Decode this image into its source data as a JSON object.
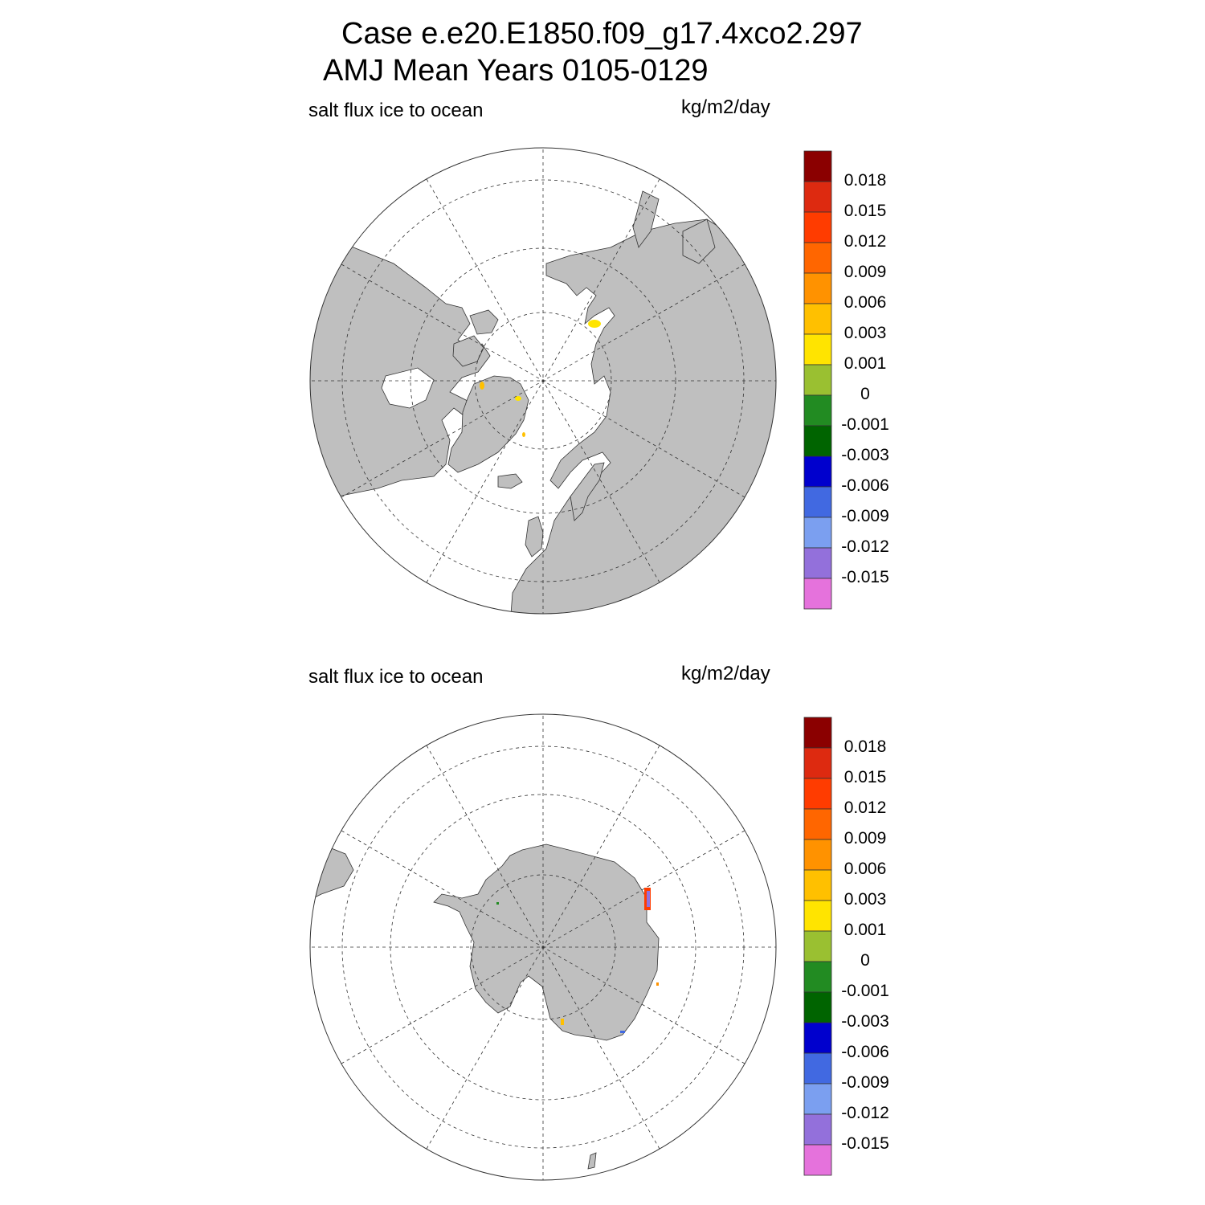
{
  "title_line1": "Case e.e20.E1850.f09_g17.4xco2.297",
  "title_line2": "AMJ Mean   Years 0105-0129",
  "panels": [
    {
      "variable_label": "salt flux ice to ocean",
      "units_label": "kg/m2/day",
      "hemisphere": "north"
    },
    {
      "variable_label": "salt flux ice to ocean",
      "units_label": "kg/m2/day",
      "hemisphere": "south"
    }
  ],
  "colorbar": {
    "colors": [
      "#8b0000",
      "#dd2a10",
      "#ff3c00",
      "#ff6600",
      "#ff9200",
      "#ffc000",
      "#ffe400",
      "#9ac031",
      "#228b22",
      "#006400",
      "#0000cd",
      "#4169e1",
      "#7b9ff0",
      "#9370db",
      "#e572dc"
    ],
    "tick_labels": [
      "0.018",
      "0.015",
      "0.012",
      "0.009",
      "0.006",
      "0.003",
      "0.001",
      "0",
      "-0.001",
      "-0.003",
      "-0.006",
      "-0.009",
      "-0.012",
      "-0.015"
    ]
  },
  "land_color": "#bfbfbf"
}
